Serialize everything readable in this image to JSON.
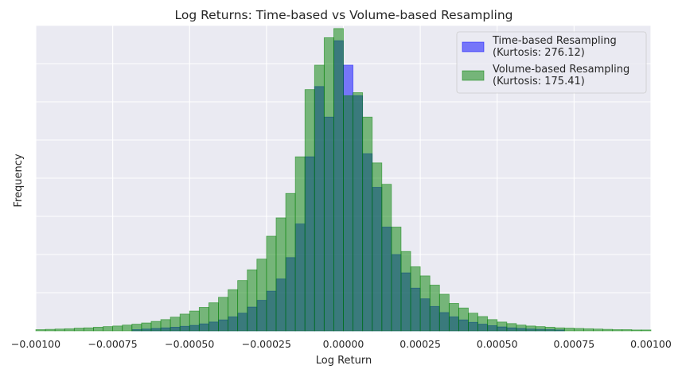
{
  "chart_data": {
    "type": "bar",
    "title": "Log Returns: Time-based vs Volume-based Resampling",
    "xlabel": "Log Return",
    "ylabel": "Frequency",
    "xlim": [
      -0.001,
      0.001
    ],
    "ylim": [
      0,
      1.0
    ],
    "x_ticks": [
      -0.001,
      -0.00075,
      -0.0005,
      -0.00025,
      0.0,
      0.00025,
      0.0005,
      0.00075,
      0.001
    ],
    "x_tick_labels": [
      "−0.00100",
      "−0.00075",
      "−0.00050",
      "−0.00025",
      "0.00000",
      "0.00025",
      "0.00050",
      "0.00075",
      "0.00100"
    ],
    "y_tick_labels": [],
    "grid": true,
    "legend_position": "top-right",
    "bin_width": 3.125e-05,
    "series": [
      {
        "name": "Time-based Resampling\n(Kurtosis: 276.12)",
        "legend_lines": [
          "Time-based Resampling",
          "(Kurtosis: 276.12)"
        ],
        "color": "#0000ff",
        "bin_starts": [
          -0.0006875,
          -0.00065625,
          -0.000625,
          -0.00059375,
          -0.0005625,
          -0.00053125,
          -0.0005,
          -0.00046875,
          -0.0004375,
          -0.00040625,
          -0.000375,
          -0.00034375,
          -0.0003125,
          -0.00028125,
          -0.00025,
          -0.00021875,
          -0.0001875,
          -0.00015625,
          -0.000125,
          -9.375e-05,
          -6.25e-05,
          -3.125e-05,
          0.0,
          3.125e-05,
          6.25e-05,
          9.375e-05,
          0.000125,
          0.00015625,
          0.0001875,
          0.00021875,
          0.00025,
          0.00028125,
          0.0003125,
          0.00034375,
          0.000375,
          0.00040625,
          0.0004375,
          0.00046875,
          0.0005,
          0.00053125,
          0.0005625,
          0.00059375,
          0.000625,
          0.00065625,
          0.0006875
        ],
        "values": [
          0.004,
          0.006,
          0.008,
          0.01,
          0.012,
          0.015,
          0.018,
          0.023,
          0.029,
          0.036,
          0.046,
          0.058,
          0.078,
          0.1,
          0.13,
          0.17,
          0.24,
          0.35,
          0.57,
          0.8,
          0.7,
          0.95,
          0.87,
          0.77,
          0.58,
          0.47,
          0.34,
          0.25,
          0.19,
          0.14,
          0.105,
          0.08,
          0.06,
          0.046,
          0.036,
          0.028,
          0.022,
          0.017,
          0.013,
          0.01,
          0.008,
          0.006,
          0.005,
          0.004,
          0.003
        ]
      },
      {
        "name": "Volume-based Resampling\n(Kurtosis: 175.41)",
        "legend_lines": [
          "Volume-based Resampling",
          "(Kurtosis: 175.41)"
        ],
        "color": "#008000",
        "bin_starts": [
          -0.001,
          -0.00096875,
          -0.0009375,
          -0.00090625,
          -0.000875,
          -0.00084375,
          -0.0008125,
          -0.00078125,
          -0.00075,
          -0.00071875,
          -0.0006875,
          -0.00065625,
          -0.000625,
          -0.00059375,
          -0.0005625,
          -0.00053125,
          -0.0005,
          -0.00046875,
          -0.0004375,
          -0.00040625,
          -0.000375,
          -0.00034375,
          -0.0003125,
          -0.00028125,
          -0.00025,
          -0.00021875,
          -0.0001875,
          -0.00015625,
          -0.000125,
          -9.375e-05,
          -6.25e-05,
          -3.125e-05,
          0.0,
          3.125e-05,
          6.25e-05,
          9.375e-05,
          0.000125,
          0.00015625,
          0.0001875,
          0.00021875,
          0.00025,
          0.00028125,
          0.0003125,
          0.00034375,
          0.000375,
          0.00040625,
          0.0004375,
          0.00046875,
          0.0005,
          0.00053125,
          0.0005625,
          0.00059375,
          0.000625,
          0.00065625,
          0.0006875,
          0.00071875,
          0.00075,
          0.00078125,
          0.0008125,
          0.00084375,
          0.000875,
          0.00090625,
          0.0009375,
          0.00096875
        ],
        "values": [
          0.004,
          0.005,
          0.006,
          0.007,
          0.009,
          0.01,
          0.012,
          0.014,
          0.016,
          0.019,
          0.022,
          0.026,
          0.031,
          0.037,
          0.045,
          0.055,
          0.065,
          0.077,
          0.092,
          0.11,
          0.135,
          0.165,
          0.2,
          0.235,
          0.31,
          0.37,
          0.45,
          0.57,
          0.79,
          0.87,
          0.96,
          0.99,
          0.77,
          0.78,
          0.7,
          0.55,
          0.48,
          0.34,
          0.26,
          0.21,
          0.18,
          0.15,
          0.12,
          0.09,
          0.075,
          0.058,
          0.047,
          0.037,
          0.029,
          0.024,
          0.019,
          0.016,
          0.014,
          0.012,
          0.01,
          0.009,
          0.008,
          0.007,
          0.006,
          0.005,
          0.004,
          0.004,
          0.003,
          0.003
        ]
      }
    ]
  }
}
